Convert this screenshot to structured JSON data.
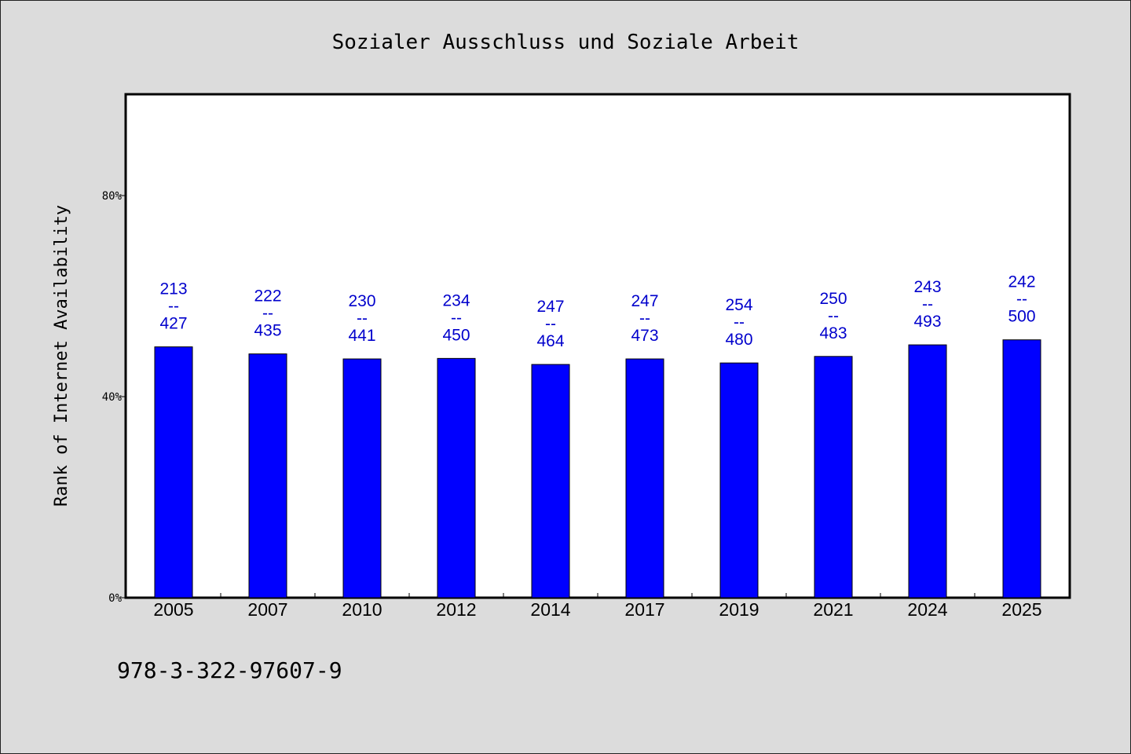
{
  "chart_data": {
    "type": "bar",
    "title": "Sozialer Ausschluss und Soziale Arbeit",
    "xlabel": "",
    "ylabel": "Rank of Internet Availability",
    "categories": [
      "2005",
      "2007",
      "2010",
      "2012",
      "2014",
      "2017",
      "2019",
      "2021",
      "2024",
      "2025"
    ],
    "values": [
      49.9,
      48.5,
      47.5,
      47.6,
      46.4,
      47.5,
      46.7,
      48.0,
      50.3,
      51.3
    ],
    "ranks": [
      "213",
      "222",
      "230",
      "234",
      "247",
      "247",
      "254",
      "250",
      "243",
      "242"
    ],
    "totals": [
      "427",
      "435",
      "441",
      "450",
      "464",
      "473",
      "480",
      "483",
      "493",
      "500"
    ],
    "label_separator": "--",
    "ylim": [
      0,
      100
    ],
    "yticks": [
      0,
      40,
      80
    ],
    "ytick_labels": [
      "0%",
      "40%",
      "80%"
    ],
    "bar_color": "#0000ff",
    "label_color": "#0000cc",
    "background_color": "#dcdcdc",
    "plot_background": "#ffffff",
    "grid": false,
    "legend": "none"
  },
  "footer": {
    "isbn": "978-3-322-97607-9"
  }
}
